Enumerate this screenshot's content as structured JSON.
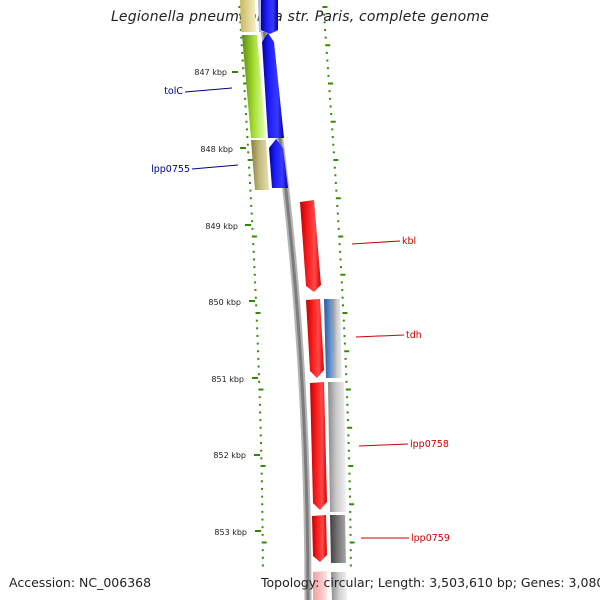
{
  "title": "Legionella pneumophila str. Paris, complete genome",
  "footer": {
    "accession": "Accession: NC_006368",
    "stats": "Topology: circular; Length: 3,503,610 bp; Genes: 3,080"
  },
  "colors": {
    "tick": "#3a8a00",
    "forward_gene": "#1f1fff",
    "reverse_gene": "#ff1a1a",
    "backbone": "#8a8a8a",
    "label_left": "#00008b",
    "label_right": "#cc0000"
  },
  "ruler": [
    "847 kbp",
    "848 kbp",
    "849 kbp",
    "850 kbp",
    "851 kbp",
    "852 kbp",
    "853 kbp"
  ],
  "genes": [
    {
      "label": "tolC",
      "side": "left"
    },
    {
      "label": "lpp0755",
      "side": "left"
    },
    {
      "label": "kbl",
      "side": "right"
    },
    {
      "label": "tdh",
      "side": "right"
    },
    {
      "label": "lpp0758",
      "side": "right"
    },
    {
      "label": "lpp0759",
      "side": "right"
    }
  ]
}
